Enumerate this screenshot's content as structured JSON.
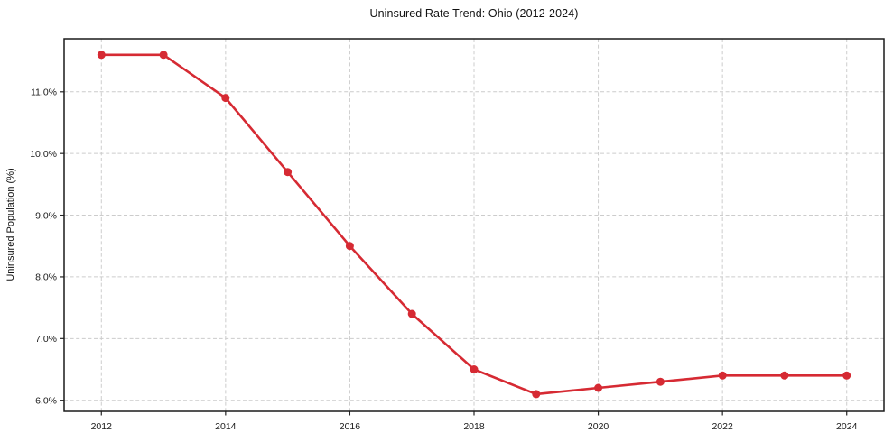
{
  "figure": {
    "title": "Uninsured Rate Trend: Ohio (2012-2024)"
  },
  "chart_data": {
    "type": "line",
    "title": "Uninsured Rate Trend: Ohio (2012-2024)",
    "xlabel": "",
    "ylabel": "Uninsured Population (%)",
    "x": [
      2012,
      2013,
      2014,
      2015,
      2016,
      2017,
      2018,
      2019,
      2020,
      2021,
      2022,
      2023,
      2024
    ],
    "values": [
      11.6,
      11.6,
      10.9,
      9.7,
      8.5,
      7.4,
      6.5,
      6.1,
      6.2,
      6.3,
      6.4,
      6.4,
      6.4
    ],
    "x_ticks": [
      2012,
      2014,
      2016,
      2018,
      2020,
      2022,
      2024
    ],
    "x_tick_labels": [
      "2012",
      "2014",
      "2016",
      "2018",
      "2020",
      "2022",
      "2024"
    ],
    "y_ticks": [
      6,
      7,
      8,
      9,
      10,
      11
    ],
    "y_tick_labels": [
      "6.0%",
      "7.0%",
      "8.0%",
      "9.0%",
      "10.0%",
      "11.0%"
    ],
    "xlim": [
      2011.4,
      2024.6
    ],
    "ylim": [
      5.82,
      11.86
    ],
    "grid": true,
    "grid_style": "dashed",
    "legend": false,
    "line_color": "#d62a33",
    "marker": "circle",
    "marker_radius": 4.5,
    "background": "#ffffff"
  }
}
